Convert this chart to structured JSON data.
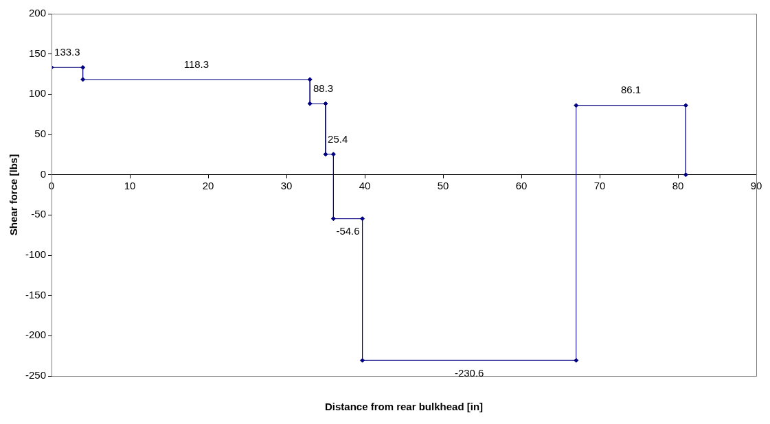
{
  "chart_data": {
    "type": "line",
    "xlabel": "Distance from rear bulkhead [in]",
    "ylabel": "Shear force [lbs]",
    "x": [
      0,
      4,
      4,
      33,
      33,
      35,
      35,
      36,
      36,
      39.7,
      39.7,
      67,
      67,
      81,
      81
    ],
    "series": [
      {
        "color": "#000080",
        "values": [
          133.3,
          133.3,
          118.3,
          118.3,
          88.3,
          88.3,
          25.4,
          25.4,
          -54.6,
          -54.6,
          -230.6,
          -230.6,
          86.1,
          86.1,
          0
        ]
      }
    ],
    "xlim": [
      0,
      90
    ],
    "xticks": [
      0,
      10,
      20,
      30,
      40,
      50,
      60,
      70,
      80,
      90
    ],
    "ylim": [
      -250,
      200
    ],
    "yticks": [
      -250,
      -200,
      -150,
      -100,
      -50,
      0,
      50,
      100,
      150,
      200
    ],
    "annotations": [
      {
        "text": "133.3",
        "x": 2,
        "y": 133.3
      },
      {
        "text": "118.3",
        "x": 18.5,
        "y": 118.3
      },
      {
        "text": "88.3",
        "x": 34,
        "y": 88.3
      },
      {
        "text": "25.4",
        "x": 35.5,
        "y": 25.4
      },
      {
        "text": "-54.6",
        "x": 37.85,
        "y": -54.6
      },
      {
        "text": "-230.6",
        "x": 53.35,
        "y": -230.6
      },
      {
        "text": "86.1",
        "x": 74,
        "y": 86.1
      }
    ],
    "grid": false,
    "legend": false,
    "marker": "diamond",
    "line_style": "solid"
  }
}
